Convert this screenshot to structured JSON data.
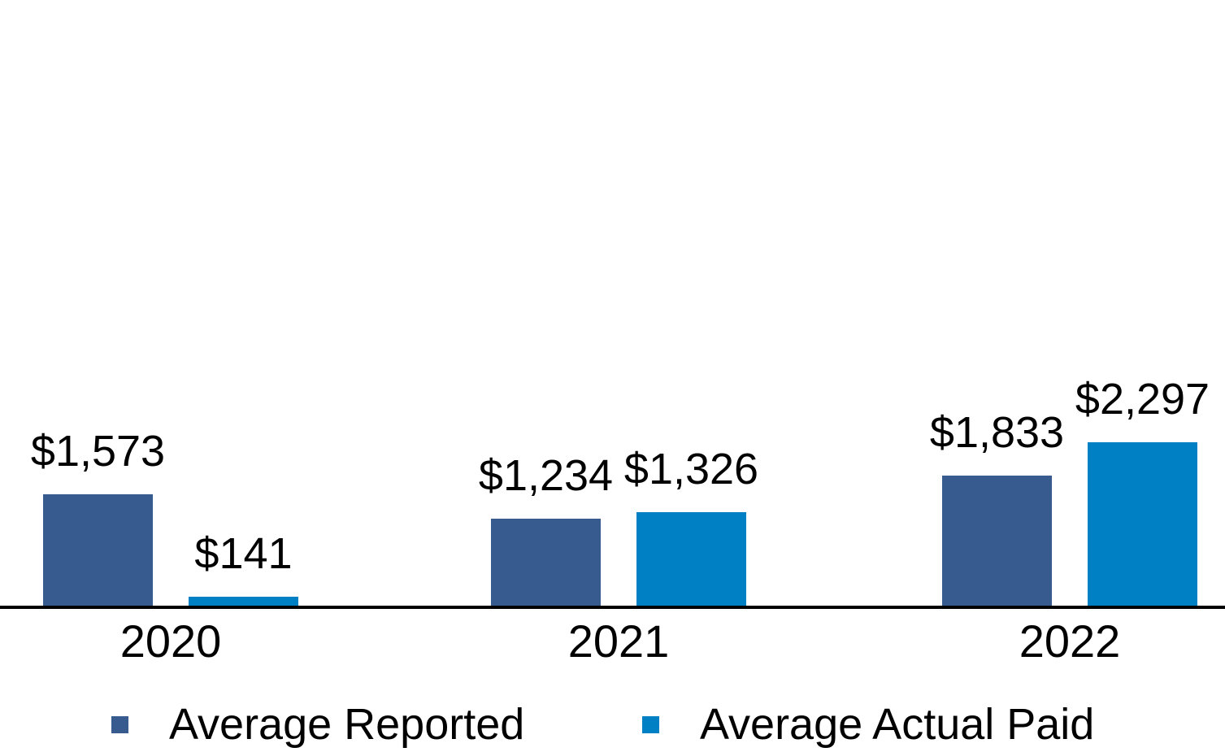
{
  "chart_data": {
    "type": "bar",
    "title": "",
    "xlabel": "",
    "ylabel": "",
    "categories": [
      "2020",
      "2021",
      "2022"
    ],
    "series": [
      {
        "name": "Average Reported",
        "color": "#375B8F",
        "values": [
          1573,
          1234,
          1833
        ],
        "data_labels": [
          "$1,573",
          "$1,234",
          "$1,833"
        ]
      },
      {
        "name": "Average Actual Paid",
        "color": "#0080C4",
        "values": [
          141,
          1326,
          2297
        ],
        "data_labels": [
          "$141",
          "$1,326",
          "$2,297"
        ]
      }
    ],
    "ylim": [
      0,
      2600
    ],
    "grid": false,
    "y_axis_visible": false,
    "x_axis_line_color": "#000000",
    "label_color": "#000000",
    "legend_position": "bottom"
  }
}
